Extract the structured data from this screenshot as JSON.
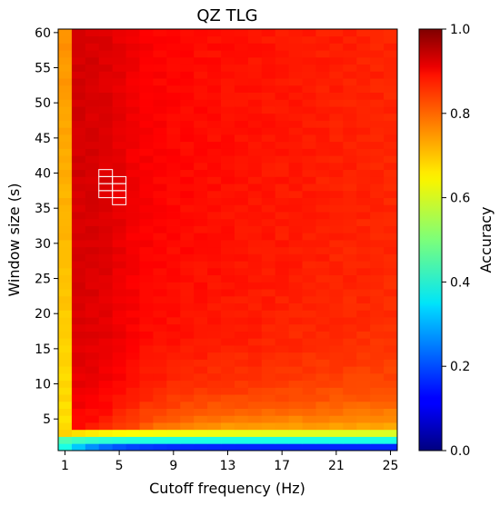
{
  "chart_data": {
    "type": "heatmap",
    "title": "QZ TLG",
    "xlabel": "Cutoff frequency (Hz)",
    "ylabel": "Window size (s)",
    "colorbar_label": "Accuracy",
    "colormap": "jet",
    "x_range": [
      1,
      25
    ],
    "y_range": [
      1,
      60
    ],
    "color_range": [
      0.0,
      1.0
    ],
    "x_ticks": [
      "1",
      "5",
      "9",
      "13",
      "17",
      "21",
      "25"
    ],
    "y_ticks": [
      "5",
      "10",
      "15",
      "20",
      "25",
      "30",
      "35",
      "40",
      "45",
      "50",
      "55",
      "60"
    ],
    "colorbar_ticks": [
      "0.0",
      "0.2",
      "0.4",
      "0.6",
      "0.8",
      "1.0"
    ],
    "highlight_cells": [
      [
        4,
        40
      ],
      [
        4,
        39
      ],
      [
        4,
        38
      ],
      [
        4,
        37
      ],
      [
        5,
        39
      ],
      [
        5,
        38
      ],
      [
        5,
        37
      ],
      [
        5,
        36
      ]
    ],
    "accuracy_summary": {
      "window_1s": "0.1-0.4",
      "window_3s": "0.6-0.8",
      "cutoff_1hz": "0.65-0.75",
      "best_region": "cutoff 3-5 Hz, window 20-60 s, about 0.9",
      "plateau": "about 0.85"
    }
  }
}
